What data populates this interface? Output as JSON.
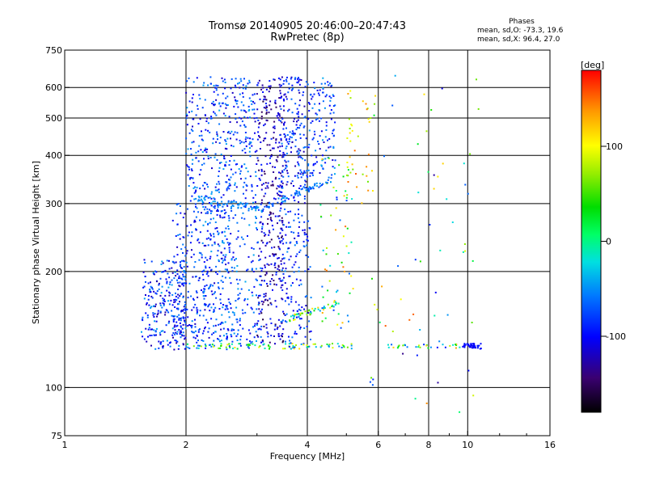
{
  "title": {
    "line1": "Tromsø 20140905 20:46:00–20:47:43",
    "line2": "RwPretec (8p)"
  },
  "stats": {
    "heading": "Phases",
    "line1": "mean, sd,O: -73.3, 19.6",
    "line2": "mean, sd,X:  96.4, 27.0"
  },
  "colorbar": {
    "unit": "[deg]",
    "range": [
      -180,
      180
    ],
    "ticks": [
      {
        "value": 100,
        "label": "100"
      },
      {
        "value": 0,
        "label": "0"
      },
      {
        "value": -100,
        "label": "-100"
      }
    ]
  },
  "chart_data": {
    "type": "scatter",
    "xlabel": "Frequency [MHz]",
    "ylabel": "Stationary phase Virtual Height [km]",
    "xscale": "log",
    "yscale": "log",
    "xlim": [
      1,
      16
    ],
    "ylim": [
      75,
      750
    ],
    "xticks": [
      {
        "value": 1,
        "label": "1"
      },
      {
        "value": 2,
        "label": "2"
      },
      {
        "value": 4,
        "label": "4"
      },
      {
        "value": 6,
        "label": "6"
      },
      {
        "value": 8,
        "label": "8"
      },
      {
        "value": 10,
        "label": "10"
      },
      {
        "value": 16,
        "label": "16"
      }
    ],
    "yticks": [
      {
        "value": 75,
        "label": "75"
      },
      {
        "value": 100,
        "label": "100"
      },
      {
        "value": 200,
        "label": "200"
      },
      {
        "value": 300,
        "label": "300"
      },
      {
        "value": 400,
        "label": "400"
      },
      {
        "value": 500,
        "label": "500"
      },
      {
        "value": 600,
        "label": "600"
      },
      {
        "value": 750,
        "label": "750"
      }
    ],
    "xgrid": [
      2,
      4,
      6,
      8,
      10
    ],
    "ygrid": [
      100,
      200,
      300,
      400,
      500,
      600
    ],
    "color_variable": "phase (deg)",
    "regions": [
      {
        "fmin": 1.55,
        "fmax": 2.0,
        "hmin": 125,
        "hmax": 215,
        "count": 260,
        "phase": [
          -130,
          -40
        ]
      },
      {
        "fmin": 1.85,
        "fmax": 2.6,
        "hmin": 125,
        "hmax": 300,
        "count": 300,
        "phase": [
          -120,
          -50
        ]
      },
      {
        "fmin": 2.0,
        "fmax": 3.0,
        "hmin": 290,
        "hmax": 640,
        "count": 380,
        "phase": [
          -120,
          -40
        ]
      },
      {
        "fmin": 2.2,
        "fmax": 3.1,
        "hmin": 128,
        "hmax": 290,
        "count": 240,
        "phase": [
          -110,
          -40
        ]
      },
      {
        "fmin": 3.0,
        "fmax": 3.5,
        "hmin": 128,
        "hmax": 640,
        "count": 360,
        "phase": [
          -160,
          -80
        ]
      },
      {
        "fmin": 3.4,
        "fmax": 4.0,
        "hmin": 300,
        "hmax": 640,
        "count": 200,
        "phase": [
          -130,
          -50
        ]
      },
      {
        "fmin": 3.4,
        "fmax": 4.1,
        "hmin": 130,
        "hmax": 290,
        "count": 150,
        "phase": [
          -120,
          -50
        ]
      },
      {
        "fmin": 4.0,
        "fmax": 4.7,
        "hmin": 350,
        "hmax": 640,
        "count": 120,
        "phase": [
          -120,
          -40
        ]
      },
      {
        "fmin": 4.3,
        "fmax": 5.2,
        "hmin": 140,
        "hmax": 400,
        "count": 70,
        "phase": [
          -90,
          150
        ]
      },
      {
        "fmin": 5.0,
        "fmax": 5.9,
        "hmin": 300,
        "hmax": 600,
        "count": 40,
        "phase": [
          60,
          160
        ]
      },
      {
        "fmin": 5.5,
        "fmax": 11.0,
        "hmin": 80,
        "hmax": 650,
        "count": 60,
        "phase": [
          -140,
          160
        ]
      }
    ],
    "traces": [
      {
        "fmin": 2.0,
        "fmax": 5.2,
        "h0": 128,
        "h1": 128,
        "count": 90,
        "phase": [
          -100,
          120
        ],
        "spread": 2
      },
      {
        "fmin": 2.1,
        "fmax": 3.1,
        "h0": 310,
        "h1": 290,
        "count": 60,
        "phase": [
          -60,
          -40
        ],
        "spread": 6
      },
      {
        "fmin": 3.1,
        "fmax": 4.6,
        "h0": 292,
        "h1": 345,
        "count": 70,
        "phase": [
          -80,
          -40
        ],
        "spread": 6
      },
      {
        "fmin": 3.6,
        "fmax": 4.9,
        "h0": 150,
        "h1": 168,
        "count": 45,
        "phase": [
          -60,
          130
        ],
        "spread": 3
      },
      {
        "fmin": 6.3,
        "fmax": 9.6,
        "h0": 128,
        "h1": 128,
        "count": 30,
        "phase": [
          -100,
          140
        ],
        "spread": 1.5
      },
      {
        "fmin": 9.7,
        "fmax": 10.8,
        "h0": 128,
        "h1": 128,
        "count": 40,
        "phase": [
          -110,
          -90
        ],
        "spread": 2
      }
    ]
  }
}
